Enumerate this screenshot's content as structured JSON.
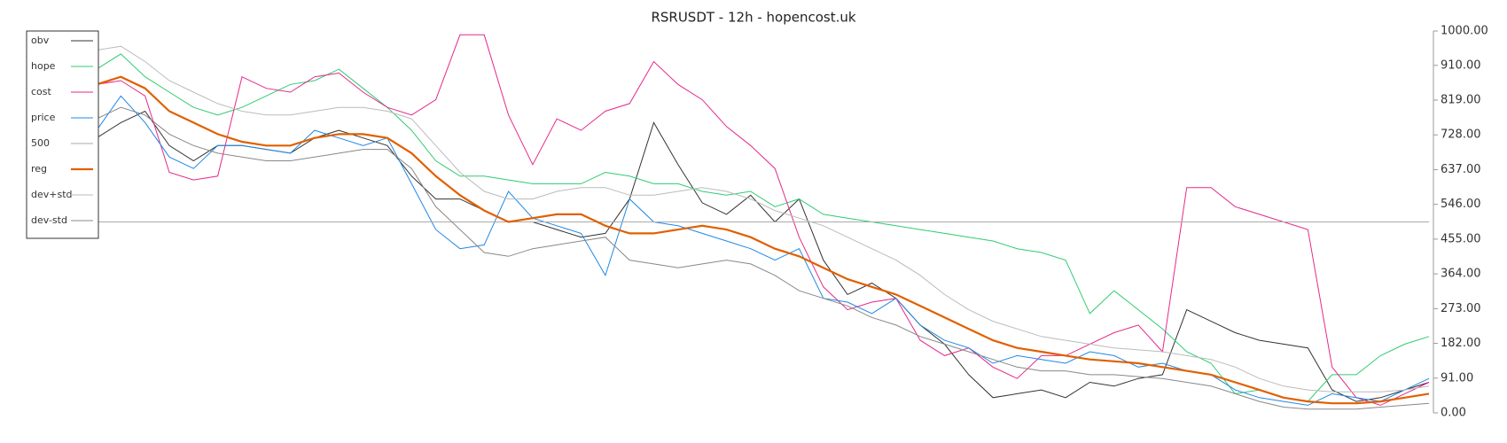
{
  "chart_data": {
    "type": "line",
    "title": "RSRUSDT - 12h - hopencost.uk",
    "ylim": [
      0,
      1000
    ],
    "yticks": [
      {
        "value": 0,
        "label": "0.00"
      },
      {
        "value": 91,
        "label": "91.00"
      },
      {
        "value": 182,
        "label": "182.00"
      },
      {
        "value": 273,
        "label": "273.00"
      },
      {
        "value": 364,
        "label": "364.00"
      },
      {
        "value": 455,
        "label": "455.00"
      },
      {
        "value": 546,
        "label": "546.00"
      },
      {
        "value": 637,
        "label": "637.00"
      },
      {
        "value": 728,
        "label": "728.00"
      },
      {
        "value": 819,
        "label": "819.00"
      },
      {
        "value": 910,
        "label": "910.00"
      },
      {
        "value": 1000,
        "label": "1000.00"
      }
    ],
    "legend": "top-left",
    "series": [
      {
        "name": "obv",
        "color": "#333333",
        "width": 1,
        "values": [
          720,
          760,
          790,
          700,
          660,
          700,
          700,
          690,
          680,
          720,
          740,
          720,
          700,
          620,
          560,
          560,
          530,
          500,
          500,
          480,
          460,
          470,
          560,
          760,
          650,
          550,
          520,
          570,
          500,
          560,
          400,
          310,
          340,
          300,
          230,
          180,
          100,
          40,
          50,
          60,
          40,
          80,
          70,
          90,
          100,
          270,
          240,
          210,
          190,
          180,
          170,
          60,
          30,
          40,
          60,
          80
        ]
      },
      {
        "name": "hope",
        "color": "#2ecc71",
        "width": 1,
        "values": [
          900,
          940,
          880,
          840,
          800,
          780,
          800,
          830,
          860,
          870,
          900,
          850,
          800,
          740,
          660,
          620,
          620,
          610,
          600,
          600,
          600,
          630,
          620,
          600,
          600,
          580,
          570,
          580,
          540,
          560,
          520,
          510,
          500,
          490,
          480,
          470,
          460,
          450,
          430,
          420,
          400,
          260,
          320,
          270,
          220,
          160,
          130,
          50,
          60,
          40,
          30,
          100,
          100,
          150,
          180,
          200
        ]
      },
      {
        "name": "cost",
        "color": "#e6288a",
        "width": 1,
        "values": [
          860,
          870,
          830,
          630,
          610,
          620,
          880,
          850,
          840,
          880,
          890,
          840,
          800,
          780,
          820,
          990,
          990,
          780,
          650,
          770,
          740,
          790,
          810,
          920,
          860,
          820,
          750,
          700,
          640,
          460,
          330,
          270,
          290,
          300,
          190,
          150,
          170,
          120,
          90,
          150,
          150,
          180,
          210,
          230,
          160,
          590,
          590,
          540,
          520,
          500,
          480,
          120,
          40,
          20,
          50,
          80
        ]
      },
      {
        "name": "price",
        "color": "#1e88e5",
        "width": 1,
        "values": [
          740,
          830,
          760,
          670,
          640,
          700,
          700,
          690,
          680,
          740,
          720,
          700,
          720,
          600,
          480,
          430,
          440,
          580,
          510,
          490,
          470,
          360,
          560,
          500,
          490,
          470,
          450,
          430,
          400,
          430,
          300,
          290,
          260,
          300,
          230,
          190,
          170,
          130,
          150,
          140,
          130,
          160,
          150,
          120,
          130,
          110,
          100,
          60,
          40,
          30,
          20,
          50,
          40,
          30,
          60,
          90
        ]
      },
      {
        "name": "500",
        "color": "#aaaaaa",
        "width": 1,
        "values": [
          500,
          500,
          500,
          500,
          500,
          500,
          500,
          500,
          500,
          500,
          500,
          500,
          500,
          500,
          500,
          500,
          500,
          500,
          500,
          500,
          500,
          500,
          500,
          500,
          500,
          500,
          500,
          500,
          500,
          500,
          500,
          500,
          500,
          500,
          500,
          500,
          500,
          500,
          500,
          500,
          500,
          500,
          500,
          500,
          500,
          500,
          500,
          500,
          500,
          500,
          500,
          500,
          500,
          500,
          500,
          500
        ]
      },
      {
        "name": "reg",
        "color": "#e06000",
        "width": 2.2,
        "values": [
          860,
          880,
          850,
          790,
          760,
          730,
          710,
          700,
          700,
          720,
          730,
          730,
          720,
          680,
          620,
          570,
          530,
          500,
          510,
          520,
          520,
          490,
          470,
          470,
          480,
          490,
          480,
          460,
          430,
          410,
          380,
          350,
          330,
          310,
          280,
          250,
          220,
          190,
          170,
          160,
          150,
          140,
          135,
          130,
          120,
          110,
          100,
          80,
          60,
          40,
          30,
          25,
          25,
          30,
          40,
          50
        ]
      },
      {
        "name": "dev+std",
        "color": "#bbbbbb",
        "width": 1,
        "values": [
          950,
          960,
          920,
          870,
          840,
          810,
          790,
          780,
          780,
          790,
          800,
          800,
          790,
          770,
          700,
          630,
          580,
          560,
          560,
          580,
          590,
          590,
          570,
          570,
          580,
          590,
          580,
          560,
          530,
          510,
          490,
          460,
          430,
          400,
          360,
          310,
          270,
          240,
          220,
          200,
          190,
          180,
          170,
          165,
          160,
          150,
          140,
          120,
          90,
          70,
          60,
          55,
          55,
          55,
          60,
          70
        ]
      },
      {
        "name": "dev-std",
        "color": "#888888",
        "width": 1,
        "values": [
          770,
          800,
          780,
          730,
          700,
          680,
          670,
          660,
          660,
          670,
          680,
          690,
          690,
          640,
          540,
          480,
          420,
          410,
          430,
          440,
          450,
          460,
          400,
          390,
          380,
          390,
          400,
          390,
          360,
          320,
          300,
          280,
          250,
          230,
          200,
          180,
          160,
          140,
          120,
          110,
          110,
          100,
          100,
          95,
          90,
          80,
          70,
          50,
          30,
          15,
          10,
          10,
          10,
          15,
          20,
          25
        ]
      }
    ]
  }
}
